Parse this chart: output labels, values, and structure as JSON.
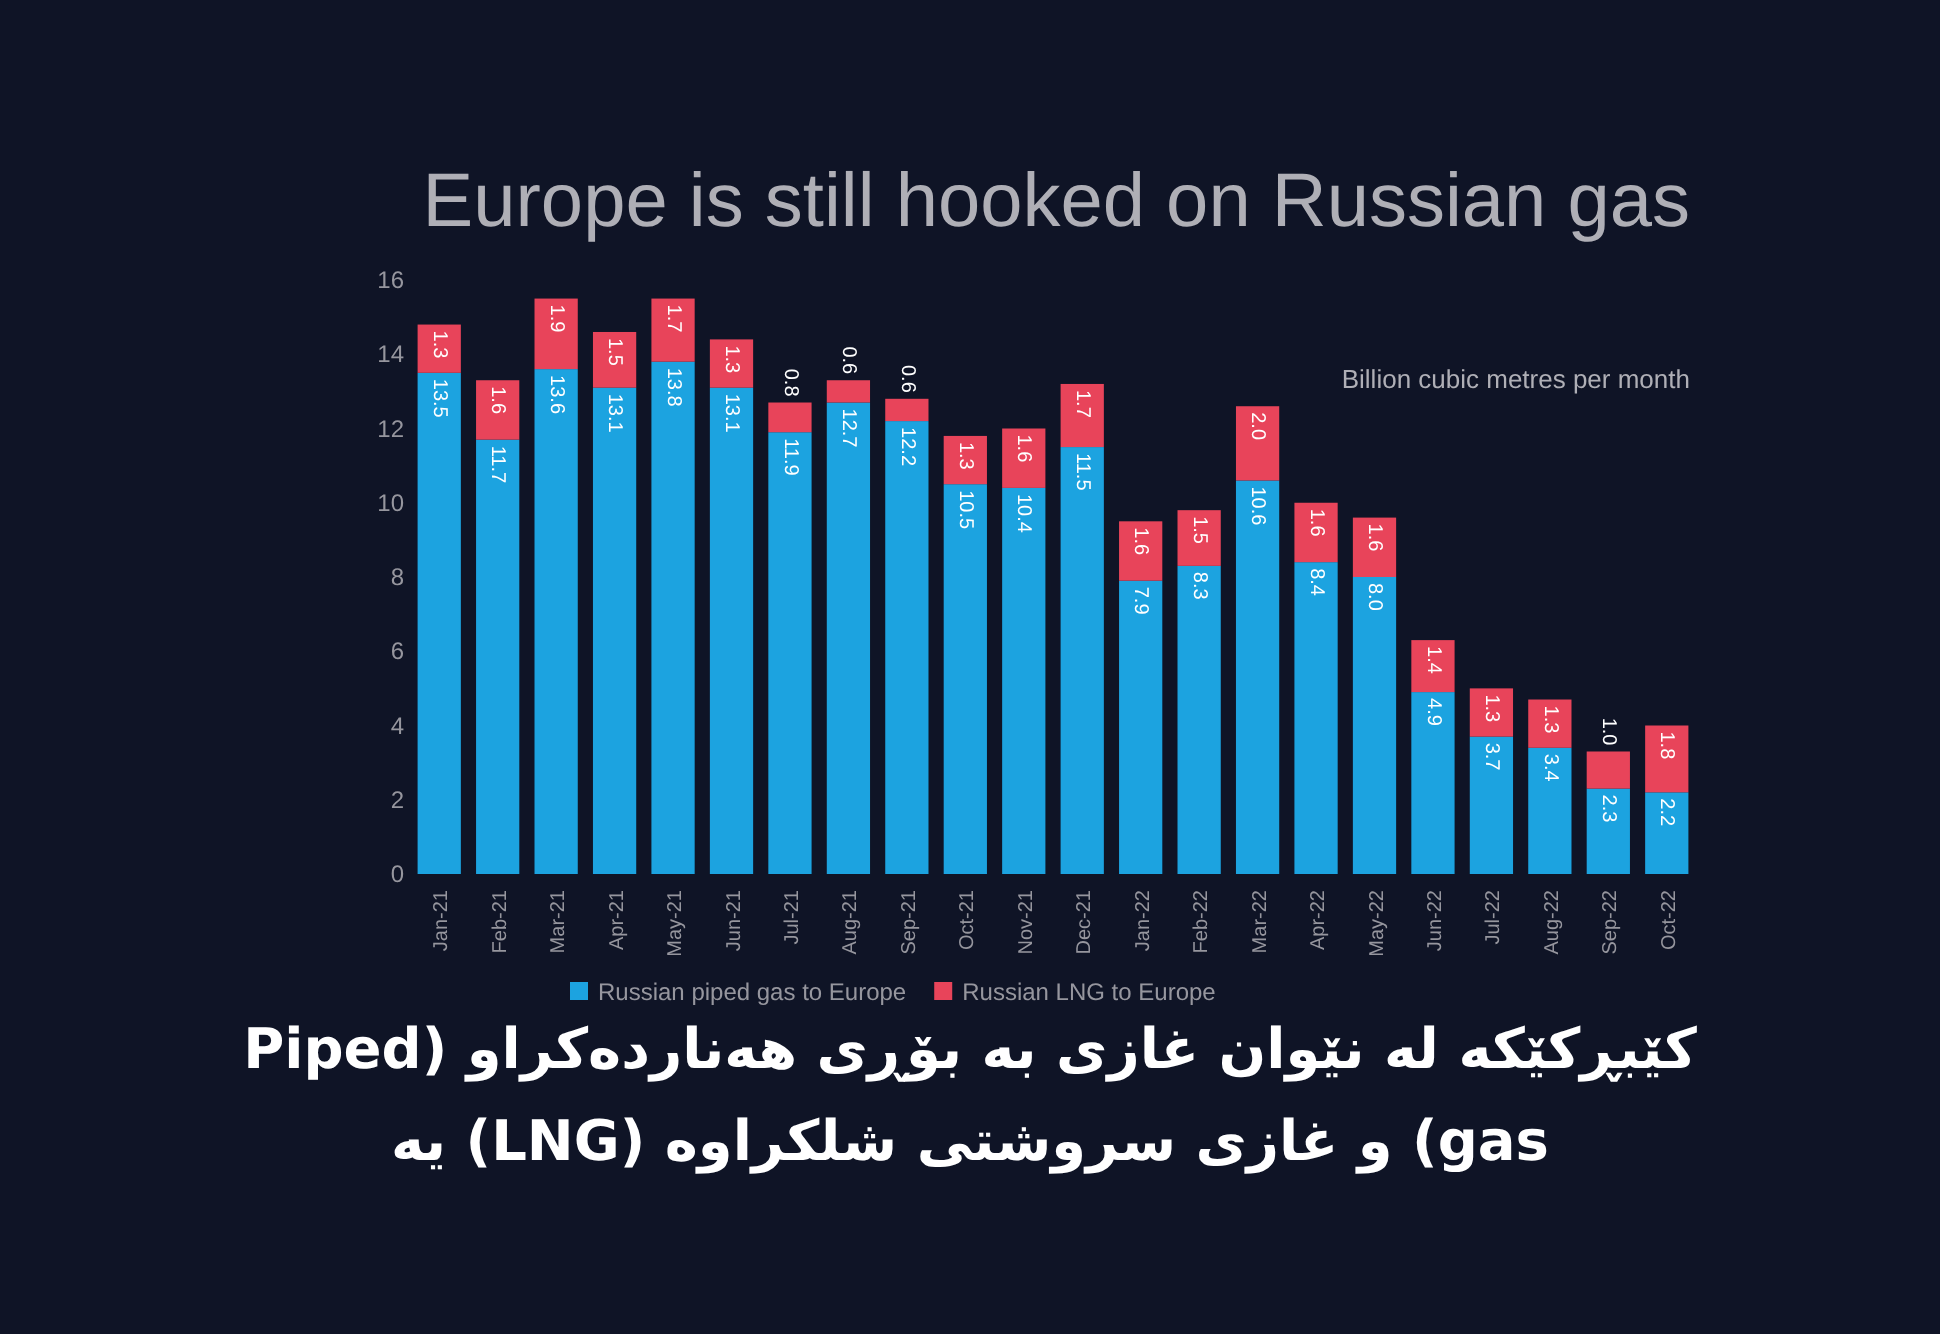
{
  "chart_data": {
    "type": "bar",
    "stacked": true,
    "title": "Europe is still hooked on Russian gas",
    "subtitle": "Billion cubic metres per month",
    "categories": [
      "Jan-21",
      "Feb-21",
      "Mar-21",
      "Apr-21",
      "May-21",
      "Jun-21",
      "Jul-21",
      "Aug-21",
      "Sep-21",
      "Oct-21",
      "Nov-21",
      "Dec-21",
      "Jan-22",
      "Feb-22",
      "Mar-22",
      "Apr-22",
      "May-22",
      "Jun-22",
      "Jul-22",
      "Aug-22",
      "Sep-22",
      "Oct-22"
    ],
    "series": [
      {
        "name": "Russian piped gas to Europe",
        "color": "#1ca3e0",
        "values": [
          13.5,
          11.7,
          13.6,
          13.1,
          13.8,
          13.1,
          11.9,
          12.7,
          12.2,
          10.5,
          10.4,
          11.5,
          7.9,
          8.3,
          10.6,
          8.4,
          8.0,
          4.9,
          3.7,
          3.4,
          2.3,
          2.2
        ],
        "value_labels": [
          "13.5",
          "11.7",
          "13.6",
          "13.1",
          "13.8",
          "13.1",
          "11.9",
          "12.7",
          "12.2",
          "10.5",
          "10.4",
          "11.5",
          "7.9",
          "8.3",
          "10.6",
          "8.4",
          "8.0",
          "4.9",
          "3.7",
          "3.4",
          "2.3",
          "2.2"
        ]
      },
      {
        "name": "Russian LNG to Europe",
        "color": "#e8445a",
        "values": [
          1.3,
          1.6,
          1.9,
          1.5,
          1.7,
          1.3,
          0.8,
          0.6,
          0.6,
          1.3,
          1.6,
          1.7,
          1.6,
          1.5,
          2.0,
          1.6,
          1.6,
          1.4,
          1.3,
          1.3,
          1.0,
          1.8
        ],
        "value_labels": [
          "1.3",
          "1.6",
          "1.9",
          "1.5",
          "1.7",
          "1.3",
          "0.8",
          "0.6",
          "0.6",
          "1.3",
          "1.6",
          "1.7",
          "1.6",
          "1.5",
          "2.0",
          "1.6",
          "1.6",
          "1.4",
          "1.3",
          "1.3",
          "1.0",
          "1.8"
        ]
      }
    ],
    "ylim": [
      0,
      16
    ],
    "yticks": [
      0,
      2,
      4,
      6,
      8,
      10,
      12,
      14,
      16
    ],
    "grid": false,
    "legend": "bottom",
    "annotations": [
      "کێبڕکێکە لە نێوان غازی بە بۆڕی هەناردەکراو (Piped gas) و غازی سروشتی شلکراوە (LNG) یە"
    ]
  }
}
